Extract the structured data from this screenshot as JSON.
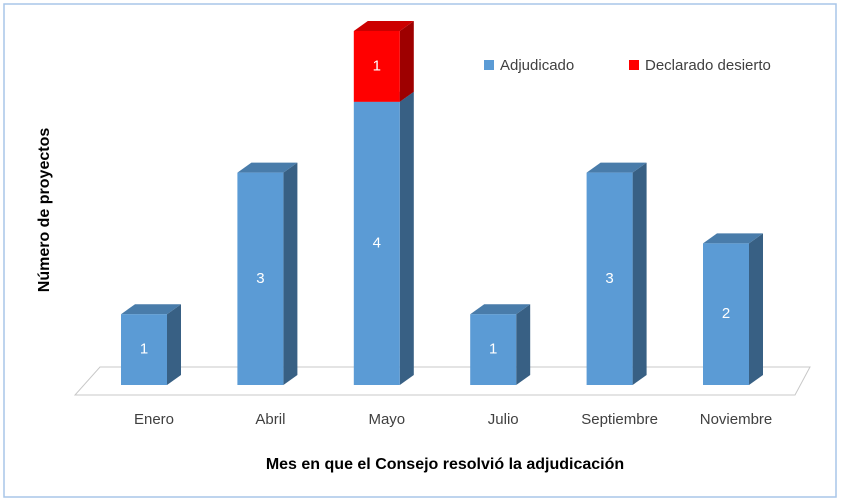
{
  "chart_data": {
    "type": "bar",
    "stacked": true,
    "three_d": true,
    "x_label": "Mes en que el Consejo resolvió la adjudicación",
    "y_label": "Número de proyectos",
    "categories": [
      "Enero",
      "Abril",
      "Mayo",
      "Julio",
      "Septiembre",
      "Noviembre"
    ],
    "series": [
      {
        "name": "Adjudicado",
        "color": "#5b9bd5",
        "values": [
          1,
          3,
          4,
          1,
          3,
          2
        ]
      },
      {
        "name": "Declarado desierto",
        "color": "#ff0000",
        "values": [
          null,
          null,
          1,
          null,
          null,
          null
        ]
      }
    ],
    "legend": "top-right"
  }
}
